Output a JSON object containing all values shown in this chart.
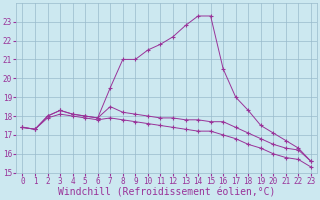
{
  "xlabel": "Windchill (Refroidissement éolien,°C)",
  "hours": [
    0,
    1,
    2,
    3,
    4,
    5,
    6,
    7,
    8,
    9,
    10,
    11,
    12,
    13,
    14,
    15,
    16,
    17,
    18,
    19,
    20,
    21,
    22,
    23
  ],
  "line1": [
    17.4,
    17.3,
    18.0,
    18.3,
    18.1,
    18.0,
    17.9,
    18.5,
    18.2,
    18.1,
    18.0,
    17.9,
    17.9,
    17.8,
    17.8,
    17.7,
    17.7,
    17.4,
    17.1,
    16.8,
    16.5,
    16.3,
    16.2,
    15.6
  ],
  "line2": [
    17.4,
    17.3,
    18.0,
    18.3,
    18.1,
    18.0,
    17.9,
    19.5,
    21.0,
    21.0,
    21.5,
    21.8,
    22.2,
    22.8,
    23.3,
    23.3,
    20.5,
    19.0,
    18.3,
    17.5,
    17.1,
    16.7,
    16.3,
    15.6
  ],
  "line3": [
    17.4,
    17.3,
    17.9,
    18.1,
    18.0,
    17.9,
    17.8,
    17.9,
    17.8,
    17.7,
    17.6,
    17.5,
    17.4,
    17.3,
    17.2,
    17.2,
    17.0,
    16.8,
    16.5,
    16.3,
    16.0,
    15.8,
    15.7,
    15.3
  ],
  "line_color": "#993399",
  "bg_color": "#cce8f0",
  "grid_color": "#99bbcc",
  "ylim": [
    15,
    24
  ],
  "yticks": [
    15,
    16,
    17,
    18,
    19,
    20,
    21,
    22,
    23
  ],
  "xticks": [
    0,
    1,
    2,
    3,
    4,
    5,
    6,
    7,
    8,
    9,
    10,
    11,
    12,
    13,
    14,
    15,
    16,
    17,
    18,
    19,
    20,
    21,
    22,
    23
  ],
  "tick_color": "#993399",
  "tick_fontsize": 5.5,
  "xlabel_fontsize": 7.0
}
